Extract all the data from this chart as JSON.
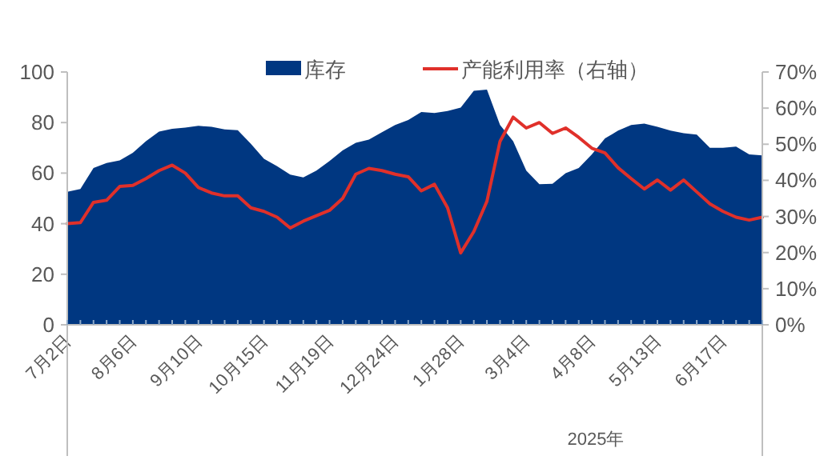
{
  "chart_data": {
    "type": "area",
    "categories": [
      "7月2日",
      null,
      null,
      null,
      null,
      "8月6日",
      null,
      null,
      null,
      null,
      "9月10日",
      null,
      null,
      null,
      null,
      "10月15日",
      null,
      null,
      null,
      null,
      "11月19日",
      null,
      null,
      null,
      null,
      "12月24日",
      null,
      null,
      null,
      null,
      "1月28日",
      null,
      null,
      null,
      null,
      "3月4日",
      null,
      null,
      null,
      null,
      "4月8日",
      null,
      null,
      null,
      null,
      "5月13日",
      null,
      null,
      null,
      null,
      "6月17日",
      null,
      null,
      null
    ],
    "series": [
      {
        "name": "库存",
        "color": "#003781",
        "values": [
          52.6,
          53.7,
          62,
          64,
          65,
          68,
          72.6,
          76.4,
          77.5,
          78,
          78.7,
          78.3,
          77.3,
          77,
          71.6,
          65.7,
          62.7,
          59.4,
          58.3,
          61,
          64.8,
          69,
          72,
          73.3,
          76.2,
          79,
          81,
          84.2,
          83.8,
          84.6,
          85.9,
          92.6,
          93,
          79,
          72.6,
          61,
          55.6,
          55.8,
          60,
          62,
          67.4,
          73.7,
          76.8,
          79,
          79.6,
          78.3,
          76.8,
          75.8,
          75.2,
          70,
          70,
          70.5,
          67.4,
          67
        ]
      },
      {
        "name": "产能利用率（右轴）",
        "type": "line",
        "axis": "y2",
        "color": "#e0302a",
        "values": [
          28,
          28.3,
          33.9,
          34.5,
          38.3,
          38.6,
          40.5,
          42.7,
          44.2,
          42,
          38,
          36.5,
          35.7,
          35.7,
          32.4,
          31.4,
          29.8,
          26.8,
          28.7,
          30.2,
          31.7,
          35,
          41.7,
          43.3,
          42.7,
          41.7,
          41,
          37.1,
          38.9,
          32.4,
          19.9,
          25.8,
          34.2,
          50.8,
          57.5,
          54.5,
          56,
          53,
          54.5,
          51.9,
          48.9,
          47.6,
          43.5,
          40.5,
          37.6,
          40.1,
          37.3,
          40.1,
          36.8,
          33.5,
          31.4,
          29.8,
          29,
          29.8
        ]
      }
    ],
    "ylim": [
      0,
      100
    ],
    "yticks": [
      0,
      20,
      40,
      60,
      80,
      100
    ],
    "y2lim": [
      0,
      70
    ],
    "y2ticks": [
      {
        "value": 0,
        "label": "0%"
      },
      {
        "value": 10,
        "label": "10%"
      },
      {
        "value": 20,
        "label": "20%"
      },
      {
        "value": 30,
        "label": "30%"
      },
      {
        "value": 40,
        "label": "40%"
      },
      {
        "value": 50,
        "label": "50%"
      },
      {
        "value": 60,
        "label": "60%"
      },
      {
        "value": 70,
        "label": "70%"
      }
    ],
    "legend": "top",
    "grid": false,
    "annotations": [
      "2025年"
    ]
  }
}
